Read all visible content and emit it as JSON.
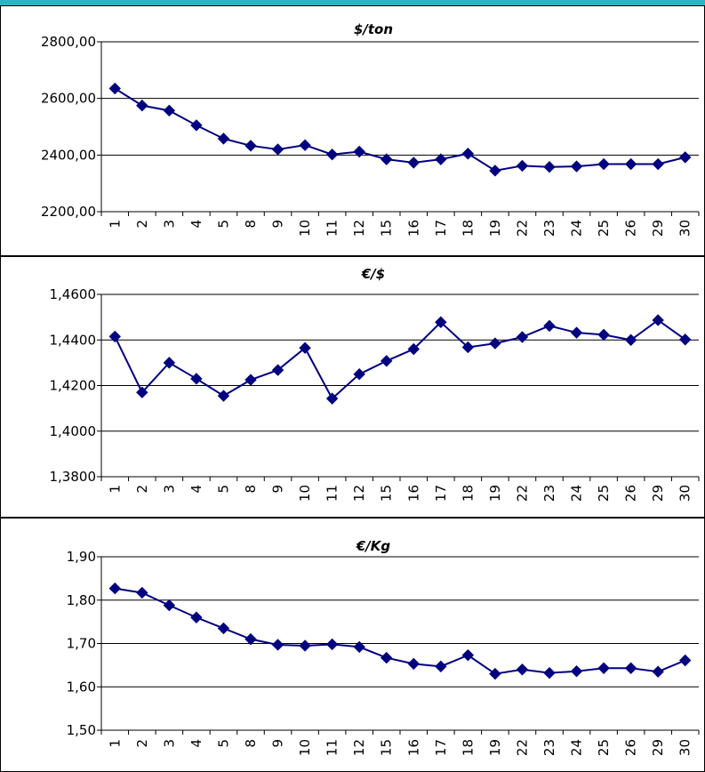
{
  "colors": {
    "series": "#000080",
    "grid": "#000000",
    "accent": "#2fb3c2"
  },
  "chart_data": [
    {
      "type": "line",
      "title": "$/ton",
      "xlabel": "",
      "ylabel": "",
      "categories": [
        "1",
        "2",
        "3",
        "4",
        "5",
        "8",
        "9",
        "10",
        "11",
        "12",
        "15",
        "16",
        "17",
        "18",
        "19",
        "22",
        "23",
        "24",
        "25",
        "26",
        "29",
        "30"
      ],
      "values": [
        2635,
        2575,
        2557,
        2505,
        2458,
        2433,
        2420,
        2435,
        2402,
        2412,
        2385,
        2373,
        2385,
        2405,
        2345,
        2362,
        2358,
        2360,
        2368,
        2368,
        2368,
        2392
      ],
      "ylim": [
        2200,
        2800
      ],
      "yticks": [
        2200,
        2400,
        2600,
        2800
      ],
      "ytick_labels": [
        "2200,00",
        "2400,00",
        "2600,00",
        "2800,00"
      ],
      "grid": "horizontal",
      "marker": "diamond"
    },
    {
      "type": "line",
      "title": "€/$",
      "xlabel": "",
      "ylabel": "",
      "categories": [
        "1",
        "2",
        "3",
        "4",
        "5",
        "8",
        "9",
        "10",
        "11",
        "12",
        "15",
        "16",
        "17",
        "18",
        "19",
        "22",
        "23",
        "24",
        "25",
        "26",
        "29",
        "30"
      ],
      "values": [
        1.4415,
        1.417,
        1.43,
        1.423,
        1.4155,
        1.4225,
        1.4268,
        1.4365,
        1.4143,
        1.425,
        1.4308,
        1.436,
        1.4478,
        1.4368,
        1.4385,
        1.4413,
        1.4462,
        1.4432,
        1.4423,
        1.44,
        1.4487,
        1.4402
      ],
      "ylim": [
        1.38,
        1.46
      ],
      "yticks": [
        1.38,
        1.4,
        1.42,
        1.44,
        1.46
      ],
      "ytick_labels": [
        "1,3800",
        "1,4000",
        "1,4200",
        "1,4400",
        "1,4600"
      ],
      "grid": "horizontal",
      "marker": "diamond"
    },
    {
      "type": "line",
      "title": "€/Kg",
      "xlabel": "",
      "ylabel": "",
      "categories": [
        "1",
        "2",
        "3",
        "4",
        "5",
        "8",
        "9",
        "10",
        "11",
        "12",
        "15",
        "16",
        "17",
        "18",
        "19",
        "22",
        "23",
        "24",
        "25",
        "26",
        "29",
        "30"
      ],
      "values": [
        1.827,
        1.817,
        1.788,
        1.76,
        1.735,
        1.71,
        1.697,
        1.695,
        1.698,
        1.692,
        1.667,
        1.653,
        1.647,
        1.673,
        1.63,
        1.64,
        1.632,
        1.636,
        1.643,
        1.643,
        1.635,
        1.661
      ],
      "ylim": [
        1.5,
        1.9
      ],
      "yticks": [
        1.5,
        1.6,
        1.7,
        1.8,
        1.9
      ],
      "ytick_labels": [
        "1,50",
        "1,60",
        "1,70",
        "1,80",
        "1,90"
      ],
      "grid": "horizontal",
      "marker": "diamond"
    }
  ]
}
